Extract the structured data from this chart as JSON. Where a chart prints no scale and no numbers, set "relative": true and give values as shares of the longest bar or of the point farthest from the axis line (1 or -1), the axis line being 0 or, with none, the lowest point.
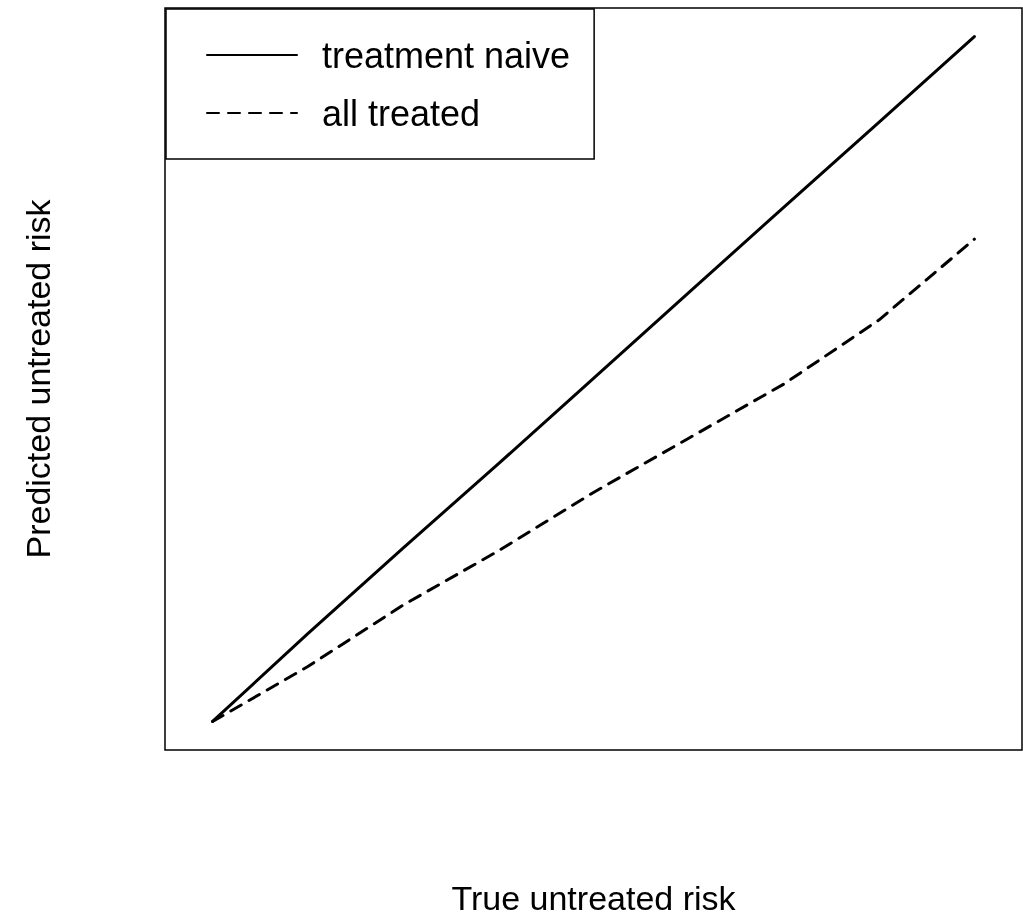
{
  "chart_data": {
    "type": "line",
    "xlabel": "True untreated risk",
    "ylabel": "Predicted untreated risk",
    "relative": true,
    "categories": [
      null,
      null,
      null,
      null,
      null,
      null,
      null,
      null,
      null
    ],
    "series": [
      {
        "name": "treatment naive",
        "color": "#000000",
        "line_style": "solid",
        "values": [
          0.04,
          0.163,
          0.283,
          0.401,
          0.521,
          0.641,
          0.761,
          0.88,
          1
        ]
      },
      {
        "name": "all treated",
        "color": "#000000",
        "line_style": "dashed",
        "values": [
          0.04,
          0.117,
          0.203,
          0.279,
          0.361,
          0.437,
          0.513,
          0.603,
          0.716
        ]
      }
    ],
    "legend": "top left",
    "grid": false,
    "marker": "none"
  }
}
